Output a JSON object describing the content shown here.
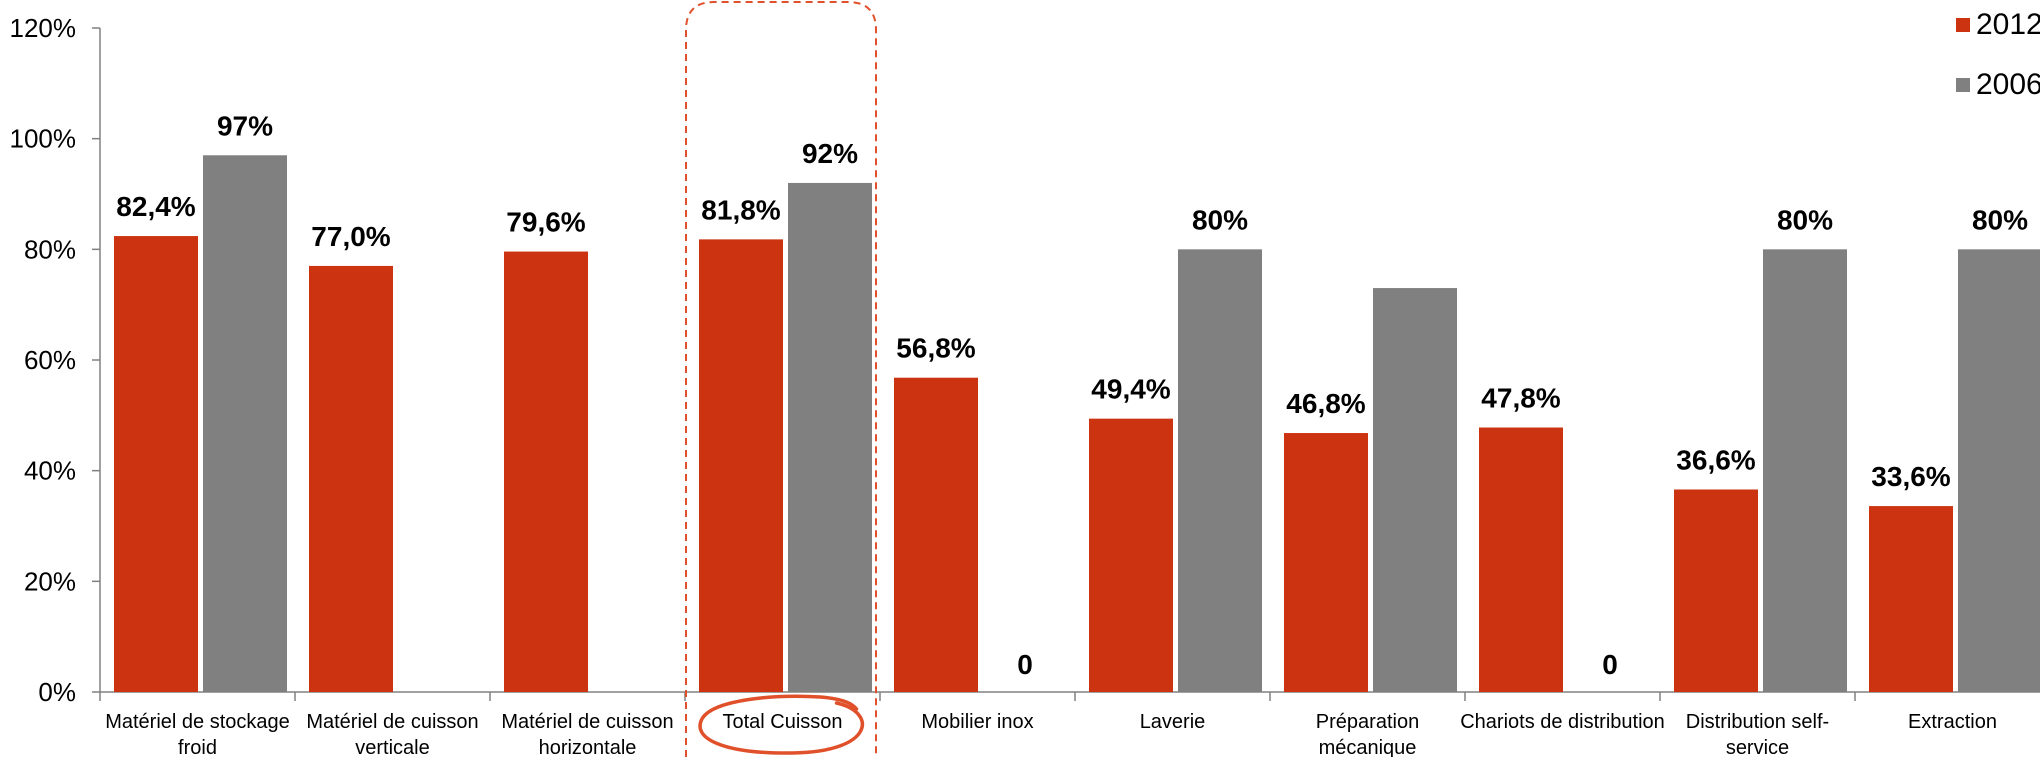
{
  "chart_data": {
    "type": "bar",
    "ylim": [
      0,
      120
    ],
    "yticks": [
      "0%",
      "20%",
      "40%",
      "60%",
      "80%",
      "100%",
      "120%"
    ],
    "ytick_values": [
      0,
      20,
      40,
      60,
      80,
      100,
      120
    ],
    "categories": [
      [
        "Matériel de stockage",
        "froid"
      ],
      [
        "Matériel de cuisson",
        "verticale"
      ],
      [
        "Matériel de cuisson",
        "horizontale"
      ],
      [
        "Total Cuisson"
      ],
      [
        "Mobilier inox"
      ],
      [
        "Laverie"
      ],
      [
        "Préparation",
        "mécanique"
      ],
      [
        "Chariots de distribution"
      ],
      [
        "Distribution self-",
        "service"
      ],
      [
        "Extraction"
      ]
    ],
    "series": [
      {
        "name": "2012",
        "color": "#cc3311",
        "values": [
          82.4,
          77.0,
          79.6,
          81.8,
          56.8,
          49.4,
          46.8,
          47.8,
          36.6,
          33.6
        ],
        "labels": [
          "82,4%",
          "77,0%",
          "79,6%",
          "81,8%",
          "56,8%",
          "49,4%",
          "46,8%",
          "47,8%",
          "36,6%",
          "33,6%"
        ]
      },
      {
        "name": "2006",
        "color": "#808080",
        "values": [
          97,
          null,
          null,
          92,
          0,
          80,
          73,
          0,
          80,
          80
        ],
        "labels": [
          "97%",
          "",
          "",
          "92%",
          "0",
          "80%",
          "",
          "0",
          "80%",
          "80%"
        ]
      }
    ],
    "highlighted_category": 3,
    "highlight_color": "#e0502a",
    "grid": false,
    "legend_position": "top-right"
  }
}
